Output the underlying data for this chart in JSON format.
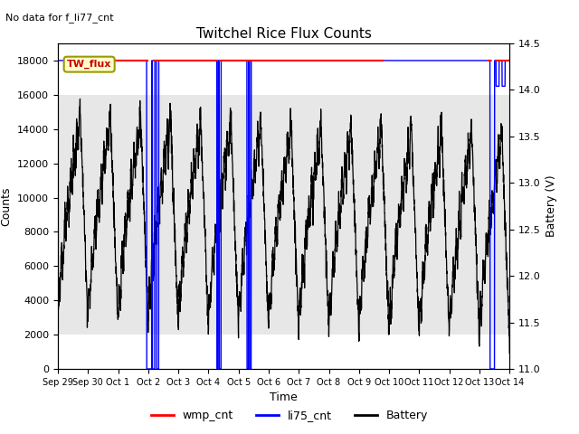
{
  "title": "Twitchel Rice Flux Counts",
  "no_data_text": "No data for f_li77_cnt",
  "tw_flux_label": "TW_flux",
  "xlabel": "Time",
  "ylabel_left": "Counts",
  "ylabel_right": "Battery (V)",
  "ylim_left": [
    0,
    19000
  ],
  "ylim_right": [
    11.0,
    14.5
  ],
  "yticks_left": [
    0,
    2000,
    4000,
    6000,
    8000,
    10000,
    12000,
    14000,
    16000,
    18000
  ],
  "yticks_right": [
    11.0,
    11.5,
    12.0,
    12.5,
    13.0,
    13.5,
    14.0,
    14.5
  ],
  "xtick_labels": [
    "Sep 29",
    "Sep 30",
    "Oct 1",
    "Oct 2",
    "Oct 3",
    "Oct 4",
    "Oct 5",
    "Oct 6",
    "Oct 7",
    "Oct 8",
    "Oct 9",
    "Oct 10",
    "Oct 11",
    "Oct 12",
    "Oct 13",
    "Oct 14"
  ],
  "xtick_positions": [
    0,
    1,
    2,
    3,
    4,
    5,
    6,
    7,
    8,
    9,
    10,
    11,
    12,
    13,
    14,
    15
  ],
  "gray_band_ylim": [
    2000,
    16000
  ],
  "wmp_cnt_color": "red",
  "li75_cnt_color": "blue",
  "battery_color": "black",
  "tw_flux_box_facecolor": "#ffffcc",
  "tw_flux_box_edgecolor": "#999900",
  "tw_flux_text_color": "#cc0000",
  "background_color": "white",
  "gray_band_color": "#d8d8d8",
  "gray_band_alpha": 0.6
}
